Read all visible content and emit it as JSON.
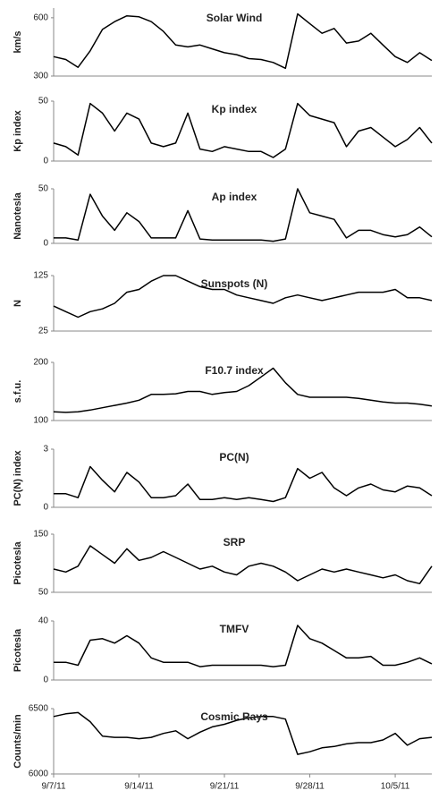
{
  "chart_data": [
    {
      "type": "line",
      "title": "Solar Wind",
      "y_label": "km/s",
      "color": "#000000",
      "x": [
        "2011-09-07",
        "2011-09-08",
        "2011-09-09",
        "2011-09-10",
        "2011-09-11",
        "2011-09-12",
        "2011-09-13",
        "2011-09-14",
        "2011-09-15",
        "2011-09-16",
        "2011-09-17",
        "2011-09-18",
        "2011-09-19",
        "2011-09-20",
        "2011-09-21",
        "2011-09-22",
        "2011-09-23",
        "2011-09-24",
        "2011-09-25",
        "2011-09-26",
        "2011-09-27",
        "2011-09-28",
        "2011-09-29",
        "2011-09-30",
        "2011-10-01",
        "2011-10-02",
        "2011-10-03",
        "2011-10-04",
        "2011-10-05",
        "2011-10-06",
        "2011-10-07",
        "2011-10-08"
      ],
      "values": [
        400,
        385,
        345,
        430,
        540,
        580,
        610,
        605,
        580,
        530,
        460,
        450,
        460,
        440,
        420,
        410,
        390,
        385,
        370,
        340,
        620,
        570,
        520,
        545,
        470,
        480,
        520,
        460,
        400,
        370,
        420,
        380
      ],
      "xlim": [
        "2011-09-07",
        "2011-10-08"
      ],
      "ylim": [
        300,
        650
      ],
      "yticks": [
        300,
        600
      ]
    },
    {
      "type": "line",
      "title": "Kp index",
      "y_label": "Kp index",
      "color": "#000000",
      "x": [
        "2011-09-07",
        "2011-09-08",
        "2011-09-09",
        "2011-09-10",
        "2011-09-11",
        "2011-09-12",
        "2011-09-13",
        "2011-09-14",
        "2011-09-15",
        "2011-09-16",
        "2011-09-17",
        "2011-09-18",
        "2011-09-19",
        "2011-09-20",
        "2011-09-21",
        "2011-09-22",
        "2011-09-23",
        "2011-09-24",
        "2011-09-25",
        "2011-09-26",
        "2011-09-27",
        "2011-09-28",
        "2011-09-29",
        "2011-09-30",
        "2011-10-01",
        "2011-10-02",
        "2011-10-03",
        "2011-10-04",
        "2011-10-05",
        "2011-10-06",
        "2011-10-07",
        "2011-10-08"
      ],
      "values": [
        15,
        12,
        5,
        48,
        40,
        25,
        40,
        35,
        15,
        12,
        15,
        40,
        10,
        8,
        12,
        10,
        8,
        8,
        3,
        10,
        48,
        38,
        35,
        32,
        12,
        25,
        28,
        20,
        12,
        18,
        28,
        15
      ],
      "xlim": [
        "2011-09-07",
        "2011-10-08"
      ],
      "ylim": [
        0,
        50
      ],
      "yticks": [
        0,
        50
      ]
    },
    {
      "type": "line",
      "title": "Ap index",
      "y_label": "Nanotesla",
      "color": "#000000",
      "x": [
        "2011-09-07",
        "2011-09-08",
        "2011-09-09",
        "2011-09-10",
        "2011-09-11",
        "2011-09-12",
        "2011-09-13",
        "2011-09-14",
        "2011-09-15",
        "2011-09-16",
        "2011-09-17",
        "2011-09-18",
        "2011-09-19",
        "2011-09-20",
        "2011-09-21",
        "2011-09-22",
        "2011-09-23",
        "2011-09-24",
        "2011-09-25",
        "2011-09-26",
        "2011-09-27",
        "2011-09-28",
        "2011-09-29",
        "2011-09-30",
        "2011-10-01",
        "2011-10-02",
        "2011-10-03",
        "2011-10-04",
        "2011-10-05",
        "2011-10-06",
        "2011-10-07",
        "2011-10-08"
      ],
      "values": [
        5,
        5,
        3,
        45,
        25,
        12,
        28,
        20,
        5,
        5,
        5,
        30,
        4,
        3,
        3,
        3,
        3,
        3,
        2,
        4,
        50,
        28,
        25,
        22,
        5,
        12,
        12,
        8,
        6,
        8,
        15,
        6
      ],
      "xlim": [
        "2011-09-07",
        "2011-10-08"
      ],
      "ylim": [
        0,
        50
      ],
      "yticks": [
        0,
        50
      ]
    },
    {
      "type": "line",
      "title": "Sunspots (N)",
      "y_label": "N",
      "color": "#000000",
      "x": [
        "2011-09-07",
        "2011-09-08",
        "2011-09-09",
        "2011-09-10",
        "2011-09-11",
        "2011-09-12",
        "2011-09-13",
        "2011-09-14",
        "2011-09-15",
        "2011-09-16",
        "2011-09-17",
        "2011-09-18",
        "2011-09-19",
        "2011-09-20",
        "2011-09-21",
        "2011-09-22",
        "2011-09-23",
        "2011-09-24",
        "2011-09-25",
        "2011-09-26",
        "2011-09-27",
        "2011-09-28",
        "2011-09-29",
        "2011-09-30",
        "2011-10-01",
        "2011-10-02",
        "2011-10-03",
        "2011-10-04",
        "2011-10-05",
        "2011-10-06",
        "2011-10-07",
        "2011-10-08"
      ],
      "values": [
        70,
        60,
        50,
        60,
        65,
        75,
        95,
        100,
        115,
        125,
        125,
        115,
        105,
        100,
        100,
        90,
        85,
        80,
        75,
        85,
        90,
        85,
        80,
        85,
        90,
        95,
        95,
        95,
        100,
        85,
        85,
        80
      ],
      "xlim": [
        "2011-09-07",
        "2011-10-08"
      ],
      "ylim": [
        25,
        125
      ],
      "yticks": [
        25,
        125
      ]
    },
    {
      "type": "line",
      "title": "F10.7 index",
      "y_label": "s.f.u.",
      "color": "#000000",
      "x": [
        "2011-09-07",
        "2011-09-08",
        "2011-09-09",
        "2011-09-10",
        "2011-09-11",
        "2011-09-12",
        "2011-09-13",
        "2011-09-14",
        "2011-09-15",
        "2011-09-16",
        "2011-09-17",
        "2011-09-18",
        "2011-09-19",
        "2011-09-20",
        "2011-09-21",
        "2011-09-22",
        "2011-09-23",
        "2011-09-24",
        "2011-09-25",
        "2011-09-26",
        "2011-09-27",
        "2011-09-28",
        "2011-09-29",
        "2011-09-30",
        "2011-10-01",
        "2011-10-02",
        "2011-10-03",
        "2011-10-04",
        "2011-10-05",
        "2011-10-06",
        "2011-10-07",
        "2011-10-08"
      ],
      "values": [
        115,
        114,
        115,
        118,
        122,
        126,
        130,
        135,
        145,
        145,
        146,
        150,
        150,
        145,
        148,
        150,
        160,
        175,
        190,
        165,
        145,
        140,
        140,
        140,
        140,
        138,
        135,
        132,
        130,
        130,
        128,
        125
      ],
      "xlim": [
        "2011-09-07",
        "2011-10-08"
      ],
      "ylim": [
        100,
        200
      ],
      "yticks": [
        100,
        200
      ]
    },
    {
      "type": "line",
      "title": "PC(N)",
      "y_label": "PC(N) index",
      "color": "#000000",
      "x": [
        "2011-09-07",
        "2011-09-08",
        "2011-09-09",
        "2011-09-10",
        "2011-09-11",
        "2011-09-12",
        "2011-09-13",
        "2011-09-14",
        "2011-09-15",
        "2011-09-16",
        "2011-09-17",
        "2011-09-18",
        "2011-09-19",
        "2011-09-20",
        "2011-09-21",
        "2011-09-22",
        "2011-09-23",
        "2011-09-24",
        "2011-09-25",
        "2011-09-26",
        "2011-09-27",
        "2011-09-28",
        "2011-09-29",
        "2011-09-30",
        "2011-10-01",
        "2011-10-02",
        "2011-10-03",
        "2011-10-04",
        "2011-10-05",
        "2011-10-06",
        "2011-10-07",
        "2011-10-08"
      ],
      "values": [
        0.7,
        0.7,
        0.5,
        2.1,
        1.4,
        0.8,
        1.8,
        1.3,
        0.5,
        0.5,
        0.6,
        1.2,
        0.4,
        0.4,
        0.5,
        0.4,
        0.5,
        0.4,
        0.3,
        0.5,
        2.0,
        1.5,
        1.8,
        1.0,
        0.6,
        1.0,
        1.2,
        0.9,
        0.8,
        1.1,
        1.0,
        0.6
      ],
      "xlim": [
        "2011-09-07",
        "2011-10-08"
      ],
      "ylim": [
        0,
        3
      ],
      "yticks": [
        0,
        3
      ]
    },
    {
      "type": "line",
      "title": "SRP",
      "y_label": "Picotesla",
      "color": "#000000",
      "x": [
        "2011-09-07",
        "2011-09-08",
        "2011-09-09",
        "2011-09-10",
        "2011-09-11",
        "2011-09-12",
        "2011-09-13",
        "2011-09-14",
        "2011-09-15",
        "2011-09-16",
        "2011-09-17",
        "2011-09-18",
        "2011-09-19",
        "2011-09-20",
        "2011-09-21",
        "2011-09-22",
        "2011-09-23",
        "2011-09-24",
        "2011-09-25",
        "2011-09-26",
        "2011-09-27",
        "2011-09-28",
        "2011-09-29",
        "2011-09-30",
        "2011-10-01",
        "2011-10-02",
        "2011-10-03",
        "2011-10-04",
        "2011-10-05",
        "2011-10-06",
        "2011-10-07",
        "2011-10-08"
      ],
      "values": [
        90,
        85,
        95,
        130,
        115,
        100,
        125,
        105,
        110,
        120,
        110,
        100,
        90,
        95,
        85,
        80,
        95,
        100,
        95,
        85,
        70,
        80,
        90,
        85,
        90,
        85,
        80,
        75,
        80,
        70,
        65,
        95
      ],
      "xlim": [
        "2011-09-07",
        "2011-10-08"
      ],
      "ylim": [
        50,
        150
      ],
      "yticks": [
        50,
        150
      ]
    },
    {
      "type": "line",
      "title": "TMFV",
      "y_label": "Picotesla",
      "color": "#000000",
      "x": [
        "2011-09-07",
        "2011-09-08",
        "2011-09-09",
        "2011-09-10",
        "2011-09-11",
        "2011-09-12",
        "2011-09-13",
        "2011-09-14",
        "2011-09-15",
        "2011-09-16",
        "2011-09-17",
        "2011-09-18",
        "2011-09-19",
        "2011-09-20",
        "2011-09-21",
        "2011-09-22",
        "2011-09-23",
        "2011-09-24",
        "2011-09-25",
        "2011-09-26",
        "2011-09-27",
        "2011-09-28",
        "2011-09-29",
        "2011-09-30",
        "2011-10-01",
        "2011-10-02",
        "2011-10-03",
        "2011-10-04",
        "2011-10-05",
        "2011-10-06",
        "2011-10-07",
        "2011-10-08"
      ],
      "values": [
        12,
        12,
        10,
        27,
        28,
        25,
        30,
        25,
        15,
        12,
        12,
        12,
        9,
        10,
        10,
        10,
        10,
        10,
        9,
        10,
        37,
        28,
        25,
        20,
        15,
        15,
        16,
        10,
        10,
        12,
        15,
        11
      ],
      "xlim": [
        "2011-09-07",
        "2011-10-08"
      ],
      "ylim": [
        0,
        40
      ],
      "yticks": [
        0,
        40
      ]
    },
    {
      "type": "line",
      "title": "Cosmic Rays",
      "y_label": "Counts/min",
      "color": "#000000",
      "x": [
        "2011-09-07",
        "2011-09-08",
        "2011-09-09",
        "2011-09-10",
        "2011-09-11",
        "2011-09-12",
        "2011-09-13",
        "2011-09-14",
        "2011-09-15",
        "2011-09-16",
        "2011-09-17",
        "2011-09-18",
        "2011-09-19",
        "2011-09-20",
        "2011-09-21",
        "2011-09-22",
        "2011-09-23",
        "2011-09-24",
        "2011-09-25",
        "2011-09-26",
        "2011-09-27",
        "2011-09-28",
        "2011-09-29",
        "2011-09-30",
        "2011-10-01",
        "2011-10-02",
        "2011-10-03",
        "2011-10-04",
        "2011-10-05",
        "2011-10-06",
        "2011-10-07",
        "2011-10-08"
      ],
      "values": [
        6440,
        6460,
        6470,
        6400,
        6290,
        6280,
        6280,
        6270,
        6280,
        6310,
        6330,
        6270,
        6320,
        6360,
        6380,
        6410,
        6430,
        6440,
        6440,
        6420,
        6150,
        6170,
        6200,
        6210,
        6230,
        6240,
        6240,
        6260,
        6310,
        6220,
        6270,
        6280
      ],
      "xlim": [
        "2011-09-07",
        "2011-10-08"
      ],
      "ylim": [
        6000,
        6500
      ],
      "yticks": [
        6000,
        6500
      ],
      "xticks": [
        {
          "value": "2011-09-07",
          "label": "9/7/11"
        },
        {
          "value": "2011-09-14",
          "label": "9/14/11"
        },
        {
          "value": "2011-09-21",
          "label": "9/21/11"
        },
        {
          "value": "2011-09-28",
          "label": "9/28/11"
        },
        {
          "value": "2011-10-05",
          "label": "10/5/11"
        }
      ]
    }
  ]
}
